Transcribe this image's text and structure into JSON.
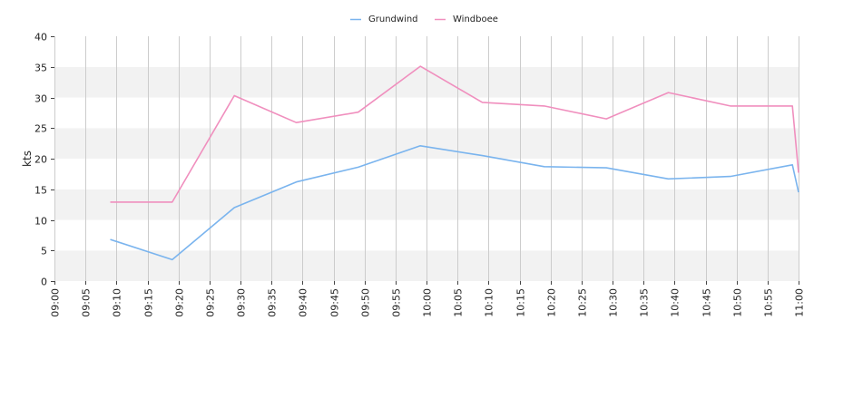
{
  "chart_data": {
    "type": "line",
    "ylabel": "kts",
    "ylim": [
      0,
      40
    ],
    "yticks": [
      0,
      5,
      10,
      15,
      20,
      25,
      30,
      35,
      40
    ],
    "x_ticks": [
      "09:00",
      "09:05",
      "09:10",
      "09:15",
      "09:20",
      "09:25",
      "09:30",
      "09:35",
      "09:40",
      "09:45",
      "09:50",
      "09:55",
      "10:00",
      "10:05",
      "10:10",
      "10:15",
      "10:20",
      "10:25",
      "10:30",
      "10:35",
      "10:40",
      "10:45",
      "10:50",
      "10:55",
      "11:00"
    ],
    "grid": true,
    "legend_position": "top-center",
    "series": [
      {
        "name": "Grundwind",
        "color": "#7ab4ee",
        "x": [
          "09:09",
          "09:19",
          "09:29",
          "09:39",
          "09:49",
          "09:59",
          "10:09",
          "10:19",
          "10:29",
          "10:39",
          "10:49",
          "10:59",
          "11:00"
        ],
        "values": [
          6.8,
          3.5,
          12.0,
          16.2,
          18.6,
          22.1,
          20.5,
          18.7,
          18.5,
          16.7,
          17.1,
          19.0,
          14.5
        ]
      },
      {
        "name": "Windboee",
        "color": "#f08fbe",
        "x": [
          "09:09",
          "09:19",
          "09:29",
          "09:39",
          "09:49",
          "09:59",
          "10:09",
          "10:19",
          "10:29",
          "10:39",
          "10:49",
          "10:59",
          "11:00"
        ],
        "values": [
          12.9,
          12.9,
          30.3,
          25.9,
          27.6,
          35.1,
          29.2,
          28.6,
          26.5,
          30.8,
          28.6,
          28.6,
          17.7
        ]
      }
    ]
  }
}
